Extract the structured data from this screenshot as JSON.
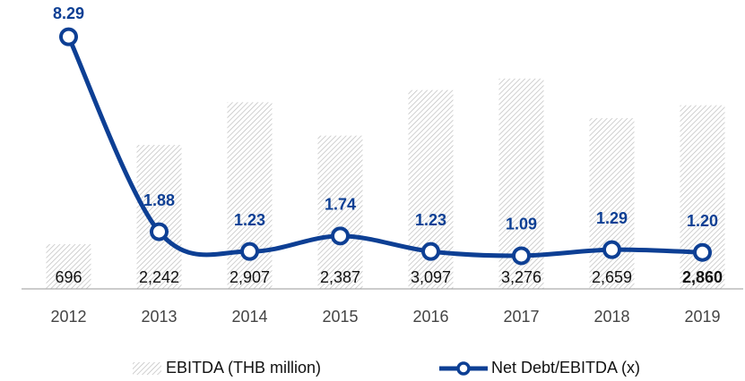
{
  "chart_data": {
    "type": "bar_line",
    "categories": [
      "2012",
      "2013",
      "2014",
      "2015",
      "2016",
      "2017",
      "2018",
      "2019"
    ],
    "series": [
      {
        "name": "EBITDA (THB million)",
        "type": "bar",
        "color": "#b3b3b3",
        "values": [
          696,
          2242,
          2907,
          2387,
          3097,
          3276,
          2659,
          2860
        ],
        "value_labels": [
          "696",
          "2,242",
          "2,907",
          "2,387",
          "3,097",
          "3,276",
          "2,659",
          "2,860"
        ]
      },
      {
        "name": "Net Debt/EBITDA (x)",
        "type": "line",
        "axis": "y2",
        "color": "#0d3f94",
        "values": [
          8.29,
          1.88,
          1.23,
          1.74,
          1.23,
          1.09,
          1.29,
          1.2
        ],
        "value_labels": [
          "8.29",
          "1.88",
          "1.23",
          "1.74",
          "1.23",
          "1.09",
          "1.29",
          "1.20"
        ]
      }
    ],
    "ylim": [
      0,
      4500
    ],
    "y2lim": [
      0,
      9.5
    ],
    "legend": "bottom"
  }
}
